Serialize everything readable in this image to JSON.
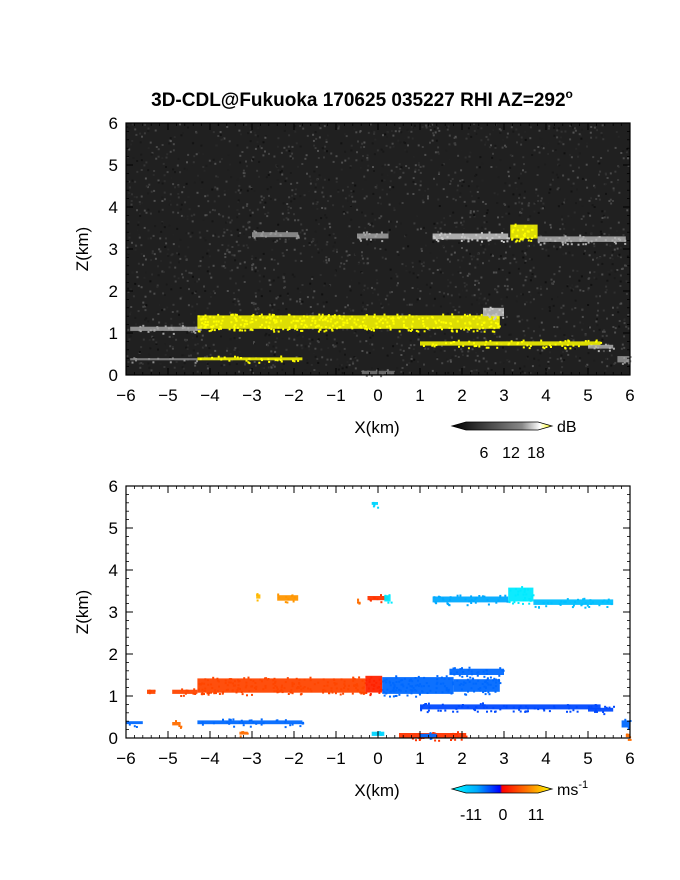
{
  "title": "3D-CDL@Fukuoka 170625 035227 RHI AZ=292",
  "title_degree": "o",
  "chart_data": [
    {
      "type": "heatmap",
      "quantity": "backscatter",
      "xlabel": "X(km)",
      "ylabel": "Z(km)",
      "xlim": [
        -6,
        6
      ],
      "ylim": [
        0,
        6
      ],
      "xticks": [
        "-6",
        "-5",
        "-4",
        "-3",
        "-2",
        "-1",
        "0",
        "1",
        "2",
        "3",
        "4",
        "5",
        "6"
      ],
      "yticks": [
        "0",
        "1",
        "2",
        "3",
        "4",
        "5",
        "6"
      ],
      "background": "noise",
      "colorbar": {
        "unit": "dB",
        "ticks": [
          "6",
          "12",
          "18"
        ]
      },
      "echoes": [
        {
          "x": [
            -3.0,
            -1.9
          ],
          "z": [
            3.28,
            3.4
          ],
          "value": 10
        },
        {
          "x": [
            -0.5,
            0.25
          ],
          "z": [
            3.25,
            3.37
          ],
          "value": 11
        },
        {
          "x": [
            1.3,
            3.1
          ],
          "z": [
            3.23,
            3.37
          ],
          "value": 14
        },
        {
          "x": [
            3.15,
            3.8
          ],
          "z": [
            3.25,
            3.58
          ],
          "value": 19
        },
        {
          "x": [
            3.8,
            5.9
          ],
          "z": [
            3.17,
            3.3
          ],
          "value": 12
        },
        {
          "x": [
            -5.9,
            -4.2
          ],
          "z": [
            1.05,
            1.15
          ],
          "value": 11
        },
        {
          "x": [
            -4.3,
            2.9
          ],
          "z": [
            1.1,
            1.42
          ],
          "value": 19
        },
        {
          "x": [
            2.5,
            3.0
          ],
          "z": [
            1.4,
            1.6
          ],
          "value": 14
        },
        {
          "x": [
            1.0,
            5.3
          ],
          "z": [
            0.7,
            0.8
          ],
          "value": 19
        },
        {
          "x": [
            5.0,
            5.6
          ],
          "z": [
            0.63,
            0.72
          ],
          "value": 12
        },
        {
          "x": [
            -5.9,
            -4.3
          ],
          "z": [
            0.35,
            0.4
          ],
          "value": 9
        },
        {
          "x": [
            -4.3,
            -1.8
          ],
          "z": [
            0.35,
            0.42
          ],
          "value": 19
        },
        {
          "x": [
            -0.4,
            0.4
          ],
          "z": [
            0.02,
            0.1
          ],
          "value": 7
        },
        {
          "x": [
            5.7,
            6.0
          ],
          "z": [
            0.3,
            0.45
          ],
          "value": 10
        }
      ]
    },
    {
      "type": "heatmap",
      "quantity": "radial velocity",
      "xlabel": "X(km)",
      "ylabel": "Z(km)",
      "xlim": [
        -6,
        6
      ],
      "ylim": [
        0,
        6
      ],
      "xticks": [
        "-6",
        "-5",
        "-4",
        "-3",
        "-2",
        "-1",
        "0",
        "1",
        "2",
        "3",
        "4",
        "5",
        "6"
      ],
      "yticks": [
        "0",
        "1",
        "2",
        "3",
        "4",
        "5",
        "6"
      ],
      "background": "none",
      "colorbar": {
        "unit": "ms",
        "unit_exponent": "-1",
        "ticks": [
          "-11",
          "0",
          "11"
        ]
      },
      "echoes": [
        {
          "x": [
            -0.15,
            0.0
          ],
          "z": [
            5.55,
            5.62
          ],
          "value": -9
        },
        {
          "x": [
            -2.9,
            -2.8
          ],
          "z": [
            3.32,
            3.42
          ],
          "value": 9
        },
        {
          "x": [
            -2.4,
            -1.9
          ],
          "z": [
            3.27,
            3.4
          ],
          "value": 8
        },
        {
          "x": [
            -0.5,
            -0.45
          ],
          "z": [
            3.25,
            3.32
          ],
          "value": 6
        },
        {
          "x": [
            -0.25,
            0.25
          ],
          "z": [
            3.28,
            3.38
          ],
          "value": 3
        },
        {
          "x": [
            0.15,
            0.3
          ],
          "z": [
            3.25,
            3.4
          ],
          "value": -10
        },
        {
          "x": [
            1.3,
            3.1
          ],
          "z": [
            3.23,
            3.37
          ],
          "value": -7
        },
        {
          "x": [
            3.1,
            3.7
          ],
          "z": [
            3.25,
            3.58
          ],
          "value": -10
        },
        {
          "x": [
            3.7,
            5.6
          ],
          "z": [
            3.17,
            3.3
          ],
          "value": -8
        },
        {
          "x": [
            -5.5,
            -5.3
          ],
          "z": [
            1.05,
            1.15
          ],
          "value": 4
        },
        {
          "x": [
            -4.9,
            -4.3
          ],
          "z": [
            1.05,
            1.15
          ],
          "value": 4
        },
        {
          "x": [
            -4.3,
            -0.3
          ],
          "z": [
            1.08,
            1.42
          ],
          "value": 4
        },
        {
          "x": [
            -0.3,
            0.1
          ],
          "z": [
            1.08,
            1.48
          ],
          "value": 2
        },
        {
          "x": [
            0.1,
            1.8
          ],
          "z": [
            1.05,
            1.45
          ],
          "value": -5
        },
        {
          "x": [
            1.8,
            2.9
          ],
          "z": [
            1.1,
            1.4
          ],
          "value": -5
        },
        {
          "x": [
            1.7,
            3.0
          ],
          "z": [
            1.5,
            1.65
          ],
          "value": -5
        },
        {
          "x": [
            1.0,
            5.3
          ],
          "z": [
            0.68,
            0.8
          ],
          "value": -4
        },
        {
          "x": [
            5.0,
            5.6
          ],
          "z": [
            0.63,
            0.72
          ],
          "value": -4
        },
        {
          "x": [
            -6.0,
            -5.6
          ],
          "z": [
            0.33,
            0.4
          ],
          "value": -5
        },
        {
          "x": [
            -4.9,
            -4.7
          ],
          "z": [
            0.3,
            0.38
          ],
          "value": 6
        },
        {
          "x": [
            -4.3,
            -1.8
          ],
          "z": [
            0.33,
            0.42
          ],
          "value": -5
        },
        {
          "x": [
            -3.3,
            -3.1
          ],
          "z": [
            0.08,
            0.15
          ],
          "value": 6
        },
        {
          "x": [
            -0.15,
            0.15
          ],
          "z": [
            0.05,
            0.15
          ],
          "value": -9
        },
        {
          "x": [
            0.5,
            2.1
          ],
          "z": [
            0.0,
            0.12
          ],
          "value": 3
        },
        {
          "x": [
            1.0,
            1.4
          ],
          "z": [
            0.02,
            0.1
          ],
          "value": -5
        },
        {
          "x": [
            5.8,
            6.0
          ],
          "z": [
            0.25,
            0.42
          ],
          "value": -5
        },
        {
          "x": [
            5.9,
            6.0
          ],
          "z": [
            0.02,
            0.1
          ],
          "value": 6
        }
      ]
    }
  ]
}
